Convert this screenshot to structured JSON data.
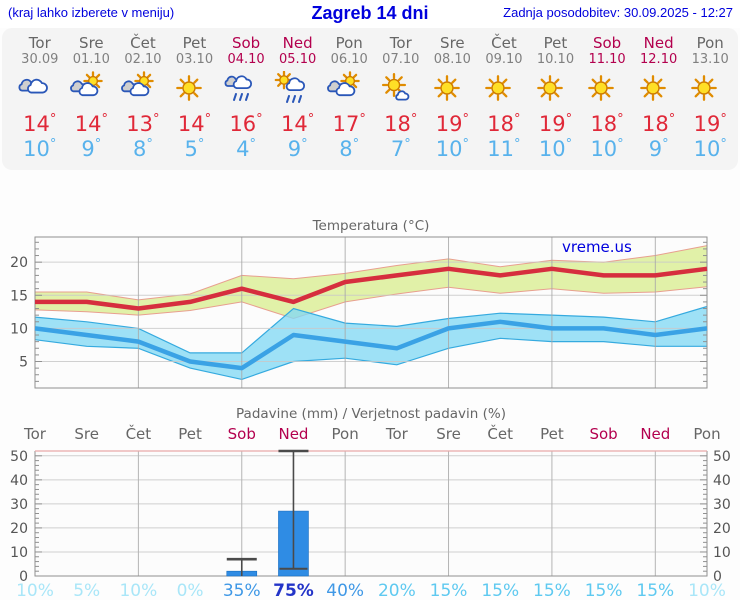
{
  "header": {
    "left_note": "(kraj lahko izberete v meniju)",
    "title": "Zagreb 14 dni",
    "updated": "Zadnja posodobitev: 30.09.2025 - 12:27"
  },
  "units": {
    "degree": "°",
    "percent": "%"
  },
  "colors": {
    "header_blue": "#0000dd",
    "weekday_gray": "#666666",
    "date_gray": "#808080",
    "weekend_red": "#b3004e",
    "tmax_red": "#e02838",
    "tmin_blue": "#58b2ec",
    "bar_blue": "#2f8ce4",
    "prob_pale": "#a9e6f8",
    "prob_light": "#5ec9f0",
    "prob_mid": "#3f98e6",
    "prob_dark": "#2334c8"
  },
  "days": [
    {
      "name": "Tor",
      "date": "30.09",
      "weekend": false,
      "icon": "cloudy",
      "tmax": 14,
      "tmin": 10
    },
    {
      "name": "Sre",
      "date": "01.10",
      "weekend": false,
      "icon": "partly-cloudy",
      "tmax": 14,
      "tmin": 9
    },
    {
      "name": "Čet",
      "date": "02.10",
      "weekend": false,
      "icon": "partly-cloudy",
      "tmax": 13,
      "tmin": 8
    },
    {
      "name": "Pet",
      "date": "03.10",
      "weekend": false,
      "icon": "sunny",
      "tmax": 14,
      "tmin": 5
    },
    {
      "name": "Sob",
      "date": "04.10",
      "weekend": true,
      "icon": "rain",
      "tmax": 16,
      "tmin": 4
    },
    {
      "name": "Ned",
      "date": "05.10",
      "weekend": true,
      "icon": "sun-rain",
      "tmax": 14,
      "tmin": 9
    },
    {
      "name": "Pon",
      "date": "06.10",
      "weekend": false,
      "icon": "partly-cloudy",
      "tmax": 17,
      "tmin": 8
    },
    {
      "name": "Tor",
      "date": "07.10",
      "weekend": false,
      "icon": "mostly-sunny",
      "tmax": 18,
      "tmin": 7
    },
    {
      "name": "Sre",
      "date": "08.10",
      "weekend": false,
      "icon": "sunny",
      "tmax": 19,
      "tmin": 10
    },
    {
      "name": "Čet",
      "date": "09.10",
      "weekend": false,
      "icon": "sunny",
      "tmax": 18,
      "tmin": 11
    },
    {
      "name": "Pet",
      "date": "10.10",
      "weekend": false,
      "icon": "sunny",
      "tmax": 19,
      "tmin": 10
    },
    {
      "name": "Sob",
      "date": "11.10",
      "weekend": true,
      "icon": "sunny",
      "tmax": 18,
      "tmin": 10
    },
    {
      "name": "Ned",
      "date": "12.10",
      "weekend": true,
      "icon": "sunny",
      "tmax": 18,
      "tmin": 9
    },
    {
      "name": "Pon",
      "date": "13.10",
      "weekend": false,
      "icon": "sunny",
      "tmax": 19,
      "tmin": 10
    }
  ],
  "chart_data": [
    {
      "type": "line",
      "title": "Temperatura (°C)",
      "watermark": "vreme.us",
      "x_labels": [
        "Tor",
        "Sre",
        "Čet",
        "Pet",
        "Sob",
        "Ned",
        "Pon",
        "Tor",
        "Sre",
        "Čet",
        "Pet",
        "Sob",
        "Ned",
        "Pon"
      ],
      "ylim": [
        1,
        23.8
      ],
      "yticks": [
        5,
        10,
        15,
        20
      ],
      "grid": true,
      "series": [
        {
          "name": "tmax",
          "label": "max temperature",
          "color": "#d62e3e",
          "values": [
            14,
            14,
            13,
            14,
            16,
            14,
            17,
            18,
            19,
            18,
            19,
            18,
            18,
            19
          ]
        },
        {
          "name": "tmax_band_high",
          "color": "#dff0a3",
          "values": [
            15.5,
            15.5,
            14.3,
            15.2,
            18,
            17.5,
            18.3,
            19.5,
            20.5,
            19.3,
            20.3,
            20,
            21,
            22.5
          ]
        },
        {
          "name": "tmax_band_low",
          "values": [
            12.8,
            12.5,
            12,
            12.7,
            14,
            11.5,
            14,
            15.2,
            16.2,
            15.3,
            16,
            15.3,
            15.5,
            16.3
          ]
        },
        {
          "name": "tmin",
          "label": "min temperature",
          "color": "#3aa2e5",
          "values": [
            10,
            9,
            8,
            5,
            4,
            9,
            8,
            7,
            10,
            11,
            10,
            10,
            9,
            10
          ]
        },
        {
          "name": "tmin_band_high",
          "color": "#83d9f4",
          "values": [
            11.7,
            11,
            10,
            6.3,
            6.3,
            13,
            10.8,
            10.3,
            11.5,
            12.3,
            12,
            11.7,
            11,
            13.3
          ]
        },
        {
          "name": "tmin_band_low",
          "values": [
            8.3,
            7.3,
            7,
            4,
            2.3,
            5,
            5.5,
            4.5,
            7,
            8.5,
            8,
            8,
            7.3,
            7.3
          ]
        }
      ]
    },
    {
      "type": "bar",
      "title": "Padavine (mm) / Verjetnost padavin (%)",
      "categories": [
        "Tor",
        "Sre",
        "Čet",
        "Pet",
        "Sob",
        "Ned",
        "Pon",
        "Tor",
        "Sre",
        "Čet",
        "Pet",
        "Sob",
        "Ned",
        "Pon"
      ],
      "values": [
        0,
        0,
        0,
        0,
        2,
        27,
        0,
        0,
        0,
        0,
        0,
        0,
        0,
        0
      ],
      "whisker_low": [
        null,
        null,
        null,
        null,
        0,
        3,
        null,
        null,
        null,
        null,
        null,
        null,
        null,
        null
      ],
      "whisker_high": [
        null,
        null,
        null,
        null,
        7,
        52,
        null,
        null,
        null,
        null,
        null,
        null,
        null,
        null
      ],
      "probabilities": [
        10,
        5,
        10,
        0,
        35,
        75,
        40,
        20,
        15,
        15,
        15,
        15,
        15,
        10
      ],
      "ylim": [
        0,
        52
      ],
      "yticks": [
        0,
        10,
        20,
        30,
        40,
        50
      ],
      "grid": true,
      "bar_color": "#2f8ce4"
    }
  ]
}
